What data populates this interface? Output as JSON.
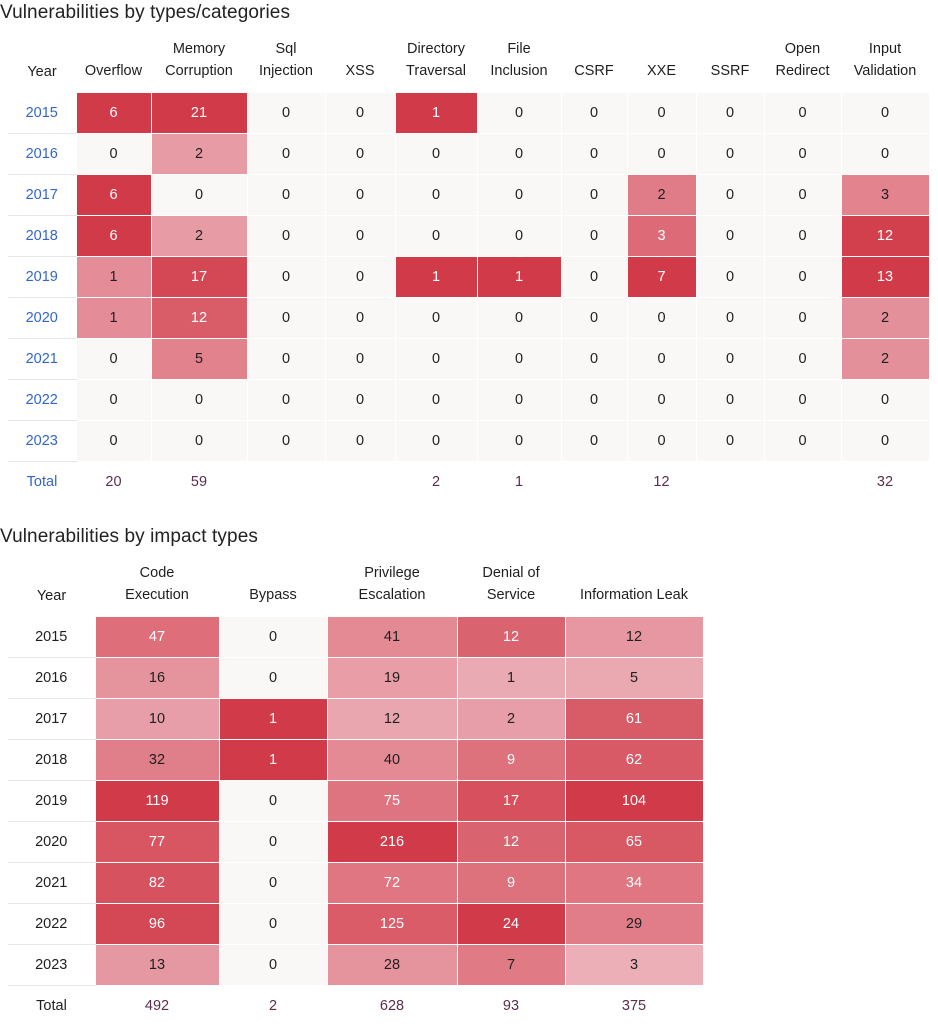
{
  "categories": {
    "title": "Vulnerabilities by types/categories",
    "year_header": "Year",
    "columns": [
      [
        "Overflow"
      ],
      [
        "Memory",
        "Corruption"
      ],
      [
        "Sql",
        "Injection"
      ],
      [
        "XSS"
      ],
      [
        "Directory",
        "Traversal"
      ],
      [
        "File",
        "Inclusion"
      ],
      [
        "CSRF"
      ],
      [
        "XXE"
      ],
      [
        "SSRF"
      ],
      [
        "Open",
        "Redirect"
      ],
      [
        "Input",
        "Validation"
      ]
    ],
    "rows": [
      {
        "year": "2015",
        "values": [
          "6",
          "21",
          "0",
          "0",
          "1",
          "0",
          "0",
          "0",
          "0",
          "0",
          "0"
        ]
      },
      {
        "year": "2016",
        "values": [
          "0",
          "2",
          "0",
          "0",
          "0",
          "0",
          "0",
          "0",
          "0",
          "0",
          "0"
        ]
      },
      {
        "year": "2017",
        "values": [
          "6",
          "0",
          "0",
          "0",
          "0",
          "0",
          "0",
          "2",
          "0",
          "0",
          "3"
        ]
      },
      {
        "year": "2018",
        "values": [
          "6",
          "2",
          "0",
          "0",
          "0",
          "0",
          "0",
          "3",
          "0",
          "0",
          "12"
        ]
      },
      {
        "year": "2019",
        "values": [
          "1",
          "17",
          "0",
          "0",
          "1",
          "1",
          "0",
          "7",
          "0",
          "0",
          "13"
        ]
      },
      {
        "year": "2020",
        "values": [
          "1",
          "12",
          "0",
          "0",
          "0",
          "0",
          "0",
          "0",
          "0",
          "0",
          "2"
        ]
      },
      {
        "year": "2021",
        "values": [
          "0",
          "5",
          "0",
          "0",
          "0",
          "0",
          "0",
          "0",
          "0",
          "0",
          "2"
        ]
      },
      {
        "year": "2022",
        "values": [
          "0",
          "0",
          "0",
          "0",
          "0",
          "0",
          "0",
          "0",
          "0",
          "0",
          "0"
        ]
      },
      {
        "year": "2023",
        "values": [
          "0",
          "0",
          "0",
          "0",
          "0",
          "0",
          "0",
          "0",
          "0",
          "0",
          "0"
        ]
      }
    ],
    "total_label": "Total",
    "totals": [
      "20",
      "59",
      "",
      "",
      "2",
      "1",
      "",
      "12",
      "",
      "",
      "32"
    ]
  },
  "impact": {
    "title": "Vulnerabilities by impact types",
    "year_header": "Year",
    "columns": [
      [
        "Code",
        "Execution"
      ],
      [
        "Bypass"
      ],
      [
        "Privilege",
        "Escalation"
      ],
      [
        "Denial of",
        "Service"
      ],
      [
        "Information Leak"
      ]
    ],
    "rows": [
      {
        "year": "2015",
        "values": [
          "47",
          "0",
          "41",
          "12",
          "12"
        ]
      },
      {
        "year": "2016",
        "values": [
          "16",
          "0",
          "19",
          "1",
          "5"
        ]
      },
      {
        "year": "2017",
        "values": [
          "10",
          "1",
          "12",
          "2",
          "61"
        ]
      },
      {
        "year": "2018",
        "values": [
          "32",
          "1",
          "40",
          "9",
          "62"
        ]
      },
      {
        "year": "2019",
        "values": [
          "119",
          "0",
          "75",
          "17",
          "104"
        ]
      },
      {
        "year": "2020",
        "values": [
          "77",
          "0",
          "216",
          "12",
          "65"
        ]
      },
      {
        "year": "2021",
        "values": [
          "82",
          "0",
          "72",
          "9",
          "34"
        ]
      },
      {
        "year": "2022",
        "values": [
          "96",
          "0",
          "125",
          "24",
          "29"
        ]
      },
      {
        "year": "2023",
        "values": [
          "13",
          "0",
          "28",
          "7",
          "3"
        ]
      }
    ],
    "total_label": "Total",
    "totals": [
      "492",
      "2",
      "628",
      "93",
      "375"
    ]
  },
  "colors": {
    "zero_cell": "#f9f8f7",
    "heat_light": "#f1c7cf",
    "heat_dark": "#d13a48",
    "year_link": "#3366cc",
    "total_text": "#5a2e4d"
  }
}
